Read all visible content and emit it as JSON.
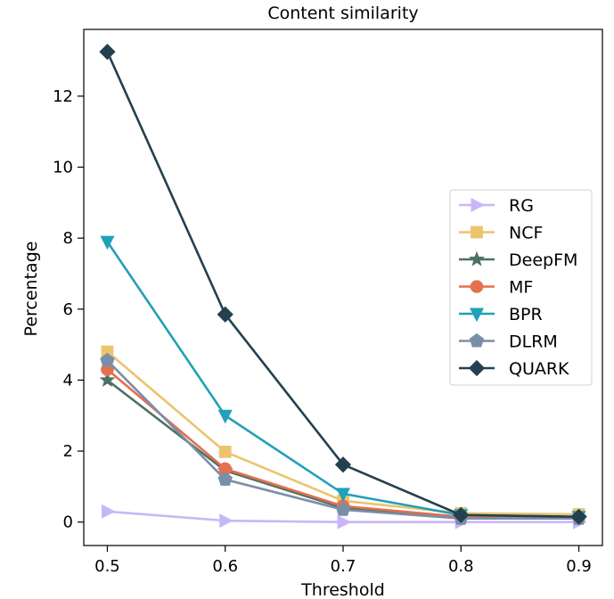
{
  "chart_data": {
    "type": "line",
    "title": "Content similarity",
    "xlabel": "Threshold",
    "ylabel": "Percentage",
    "x": [
      0.5,
      0.6,
      0.7,
      0.8,
      0.9
    ],
    "xticks": [
      "0.5",
      "0.6",
      "0.7",
      "0.8",
      "0.9"
    ],
    "yticks": [
      "0",
      "2",
      "4",
      "6",
      "8",
      "10",
      "12"
    ],
    "xlim": [
      0.48,
      0.92
    ],
    "ylim": [
      -0.66,
      13.88
    ],
    "grid": false,
    "legend_position": "center-right",
    "series": [
      {
        "name": "RG",
        "color": "#c7b7f8",
        "marker": "triangle-right",
        "values": [
          0.3,
          0.04,
          0.0,
          0.0,
          0.0
        ]
      },
      {
        "name": "NCF",
        "color": "#ecc46e",
        "marker": "square",
        "values": [
          4.8,
          1.98,
          0.6,
          0.25,
          0.22
        ]
      },
      {
        "name": "DeepFM",
        "color": "#4e7163",
        "marker": "star",
        "values": [
          4.0,
          1.45,
          0.4,
          0.12,
          0.12
        ]
      },
      {
        "name": "MF",
        "color": "#e4704f",
        "marker": "circle",
        "values": [
          4.3,
          1.5,
          0.45,
          0.15,
          0.14
        ]
      },
      {
        "name": "BPR",
        "color": "#21a0b8",
        "marker": "triangle-down",
        "values": [
          7.9,
          3.0,
          0.8,
          0.2,
          0.15
        ]
      },
      {
        "name": "DLRM",
        "color": "#7b8ea8",
        "marker": "pentagon",
        "values": [
          4.55,
          1.2,
          0.35,
          0.1,
          0.1
        ]
      },
      {
        "name": "QUARK",
        "color": "#24404f",
        "marker": "diamond",
        "values": [
          13.25,
          5.85,
          1.62,
          0.2,
          0.15
        ]
      }
    ]
  }
}
